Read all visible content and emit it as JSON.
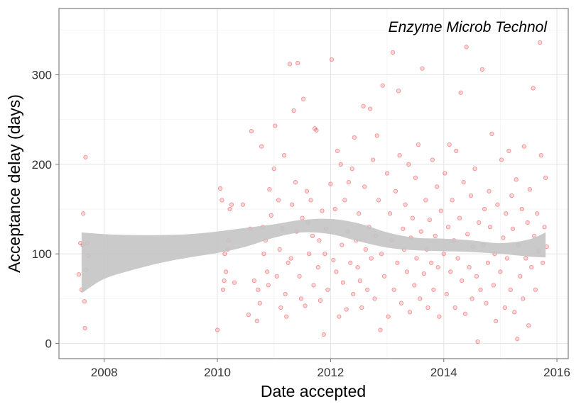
{
  "chart_data": {
    "type": "scatter",
    "title": "",
    "annotation": "Enzyme Microb Technol",
    "xlabel": "Date accepted",
    "ylabel": "Acceptance delay (days)",
    "xlim": [
      2007.2,
      2016.2
    ],
    "ylim": [
      -17,
      374
    ],
    "xticks": [
      2008,
      2010,
      2012,
      2014,
      2016
    ],
    "yticks": [
      0,
      100,
      200,
      300
    ],
    "grid": true,
    "legend": "none",
    "point_color": "#e8272a",
    "point_fill_opacity": 0.18,
    "smooth_band_color": "#c4c4c4",
    "smooth_band": {
      "x": [
        2007.6,
        2008.0,
        2008.5,
        2009.0,
        2009.5,
        2010.0,
        2010.5,
        2011.0,
        2011.5,
        2012.0,
        2012.5,
        2013.0,
        2013.5,
        2014.0,
        2014.5,
        2015.0,
        2015.5,
        2015.8
      ],
      "lower": [
        56,
        72,
        82,
        90,
        96,
        101,
        108,
        118,
        124,
        122,
        114,
        107,
        104,
        103,
        102,
        100,
        97,
        96
      ],
      "upper": [
        124,
        122,
        121,
        121,
        122,
        125,
        129,
        133,
        138,
        139,
        134,
        124,
        118,
        117,
        115,
        112,
        116,
        124
      ]
    },
    "points": [
      [
        2007.55,
        77
      ],
      [
        2007.58,
        112
      ],
      [
        2007.6,
        60
      ],
      [
        2007.62,
        110
      ],
      [
        2007.63,
        145
      ],
      [
        2007.65,
        47
      ],
      [
        2007.66,
        17
      ],
      [
        2007.67,
        208
      ],
      [
        2007.68,
        82
      ],
      [
        2007.7,
        112
      ],
      [
        2007.72,
        98
      ],
      [
        2010.0,
        15
      ],
      [
        2010.05,
        173
      ],
      [
        2010.08,
        160
      ],
      [
        2010.1,
        60
      ],
      [
        2010.12,
        70
      ],
      [
        2010.13,
        100
      ],
      [
        2010.15,
        80
      ],
      [
        2010.18,
        105
      ],
      [
        2010.2,
        115
      ],
      [
        2010.22,
        150
      ],
      [
        2010.25,
        155
      ],
      [
        2010.3,
        68
      ],
      [
        2010.45,
        155
      ],
      [
        2010.55,
        32
      ],
      [
        2010.58,
        128
      ],
      [
        2010.6,
        237
      ],
      [
        2010.65,
        70
      ],
      [
        2010.7,
        25
      ],
      [
        2010.72,
        60
      ],
      [
        2010.75,
        45
      ],
      [
        2010.78,
        220
      ],
      [
        2010.8,
        130
      ],
      [
        2010.82,
        100
      ],
      [
        2010.85,
        115
      ],
      [
        2010.88,
        80
      ],
      [
        2010.9,
        65
      ],
      [
        2010.92,
        172
      ],
      [
        2010.95,
        143
      ],
      [
        2011.0,
        195
      ],
      [
        2011.02,
        243
      ],
      [
        2011.05,
        75
      ],
      [
        2011.08,
        160
      ],
      [
        2011.1,
        105
      ],
      [
        2011.12,
        40
      ],
      [
        2011.15,
        128
      ],
      [
        2011.18,
        210
      ],
      [
        2011.2,
        55
      ],
      [
        2011.22,
        30
      ],
      [
        2011.25,
        90
      ],
      [
        2011.28,
        312
      ],
      [
        2011.3,
        95
      ],
      [
        2011.32,
        155
      ],
      [
        2011.35,
        260
      ],
      [
        2011.38,
        180
      ],
      [
        2011.4,
        125
      ],
      [
        2011.42,
        313
      ],
      [
        2011.45,
        75
      ],
      [
        2011.48,
        50
      ],
      [
        2011.5,
        140
      ],
      [
        2011.52,
        273
      ],
      [
        2011.55,
        42
      ],
      [
        2011.58,
        170
      ],
      [
        2011.6,
        135
      ],
      [
        2011.62,
        100
      ],
      [
        2011.65,
        160
      ],
      [
        2011.68,
        120
      ],
      [
        2011.7,
        65
      ],
      [
        2011.72,
        240
      ],
      [
        2011.75,
        238
      ],
      [
        2011.78,
        85
      ],
      [
        2011.8,
        115
      ],
      [
        2011.82,
        48
      ],
      [
        2011.85,
        148
      ],
      [
        2011.88,
        10
      ],
      [
        2011.9,
        100
      ],
      [
        2011.92,
        128
      ],
      [
        2011.95,
        60
      ],
      [
        2012.0,
        178
      ],
      [
        2012.02,
        317
      ],
      [
        2012.05,
        93
      ],
      [
        2012.08,
        150
      ],
      [
        2012.1,
        80
      ],
      [
        2012.12,
        215
      ],
      [
        2012.15,
        30
      ],
      [
        2012.18,
        200
      ],
      [
        2012.2,
        110
      ],
      [
        2012.22,
        68
      ],
      [
        2012.25,
        160
      ],
      [
        2012.28,
        38
      ],
      [
        2012.3,
        125
      ],
      [
        2012.32,
        180
      ],
      [
        2012.35,
        90
      ],
      [
        2012.38,
        195
      ],
      [
        2012.4,
        55
      ],
      [
        2012.42,
        230
      ],
      [
        2012.45,
        115
      ],
      [
        2012.48,
        85
      ],
      [
        2012.5,
        145
      ],
      [
        2012.52,
        70
      ],
      [
        2012.55,
        40
      ],
      [
        2012.58,
        265
      ],
      [
        2012.6,
        175
      ],
      [
        2012.62,
        105
      ],
      [
        2012.65,
        60
      ],
      [
        2012.68,
        130
      ],
      [
        2012.7,
        262
      ],
      [
        2012.72,
        95
      ],
      [
        2012.75,
        205
      ],
      [
        2012.78,
        50
      ],
      [
        2012.8,
        120
      ],
      [
        2012.82,
        232
      ],
      [
        2012.85,
        160
      ],
      [
        2012.88,
        15
      ],
      [
        2012.9,
        100
      ],
      [
        2012.92,
        288
      ],
      [
        2012.95,
        75
      ],
      [
        2013.0,
        190
      ],
      [
        2013.02,
        30
      ],
      [
        2013.05,
        145
      ],
      [
        2013.08,
        115
      ],
      [
        2013.1,
        325
      ],
      [
        2013.12,
        60
      ],
      [
        2013.15,
        170
      ],
      [
        2013.18,
        90
      ],
      [
        2013.2,
        282
      ],
      [
        2013.22,
        210
      ],
      [
        2013.25,
        45
      ],
      [
        2013.28,
        128
      ],
      [
        2013.3,
        105
      ],
      [
        2013.32,
        155
      ],
      [
        2013.35,
        80
      ],
      [
        2013.38,
        200
      ],
      [
        2013.4,
        35
      ],
      [
        2013.42,
        118
      ],
      [
        2013.45,
        140
      ],
      [
        2013.48,
        65
      ],
      [
        2013.5,
        185
      ],
      [
        2013.52,
        95
      ],
      [
        2013.55,
        222
      ],
      [
        2013.58,
        50
      ],
      [
        2013.6,
        125
      ],
      [
        2013.62,
        307
      ],
      [
        2013.65,
        78
      ],
      [
        2013.68,
        160
      ],
      [
        2013.7,
        105
      ],
      [
        2013.72,
        40
      ],
      [
        2013.75,
        138
      ],
      [
        2013.78,
        90
      ],
      [
        2013.8,
        205
      ],
      [
        2013.82,
        60
      ],
      [
        2013.85,
        120
      ],
      [
        2013.88,
        175
      ],
      [
        2013.9,
        85
      ],
      [
        2013.92,
        30
      ],
      [
        2013.95,
        148
      ],
      [
        2014.0,
        100
      ],
      [
        2014.02,
        190
      ],
      [
        2014.05,
        55
      ],
      [
        2014.08,
        130
      ],
      [
        2014.1,
        222
      ],
      [
        2014.12,
        80
      ],
      [
        2014.15,
        160
      ],
      [
        2014.18,
        115
      ],
      [
        2014.2,
        40
      ],
      [
        2014.22,
        215
      ],
      [
        2014.25,
        95
      ],
      [
        2014.28,
        140
      ],
      [
        2014.3,
        280
      ],
      [
        2014.32,
        70
      ],
      [
        2014.35,
        180
      ],
      [
        2014.38,
        33
      ],
      [
        2014.4,
        331
      ],
      [
        2014.42,
        122
      ],
      [
        2014.45,
        85
      ],
      [
        2014.48,
        165
      ],
      [
        2014.5,
        50
      ],
      [
        2014.52,
        108
      ],
      [
        2014.55,
        195
      ],
      [
        2014.58,
        75
      ],
      [
        2014.6,
        2
      ],
      [
        2014.62,
        135
      ],
      [
        2014.65,
        60
      ],
      [
        2014.68,
        306
      ],
      [
        2014.7,
        110
      ],
      [
        2014.72,
        150
      ],
      [
        2014.75,
        45
      ],
      [
        2014.78,
        90
      ],
      [
        2014.8,
        170
      ],
      [
        2014.82,
        130
      ],
      [
        2014.85,
        234
      ],
      [
        2014.88,
        65
      ],
      [
        2014.9,
        100
      ],
      [
        2014.92,
        25
      ],
      [
        2014.95,
        155
      ],
      [
        2015.0,
        80
      ],
      [
        2015.02,
        205
      ],
      [
        2015.05,
        118
      ],
      [
        2015.08,
        40
      ],
      [
        2015.1,
        145
      ],
      [
        2015.12,
        95
      ],
      [
        2015.15,
        215
      ],
      [
        2015.18,
        60
      ],
      [
        2015.2,
        165
      ],
      [
        2015.22,
        128
      ],
      [
        2015.25,
        35
      ],
      [
        2015.28,
        183
      ],
      [
        2015.3,
        5
      ],
      [
        2015.32,
        110
      ],
      [
        2015.35,
        75
      ],
      [
        2015.38,
        150
      ],
      [
        2015.4,
        50
      ],
      [
        2015.42,
        220
      ],
      [
        2015.45,
        95
      ],
      [
        2015.48,
        135
      ],
      [
        2015.5,
        20
      ],
      [
        2015.52,
        172
      ],
      [
        2015.55,
        85
      ],
      [
        2015.58,
        285
      ],
      [
        2015.6,
        120
      ],
      [
        2015.62,
        60
      ],
      [
        2015.65,
        145
      ],
      [
        2015.68,
        103
      ],
      [
        2015.7,
        336
      ],
      [
        2015.72,
        210
      ],
      [
        2015.75,
        90
      ],
      [
        2015.78,
        130
      ],
      [
        2015.8,
        185
      ],
      [
        2015.82,
        108
      ]
    ]
  }
}
